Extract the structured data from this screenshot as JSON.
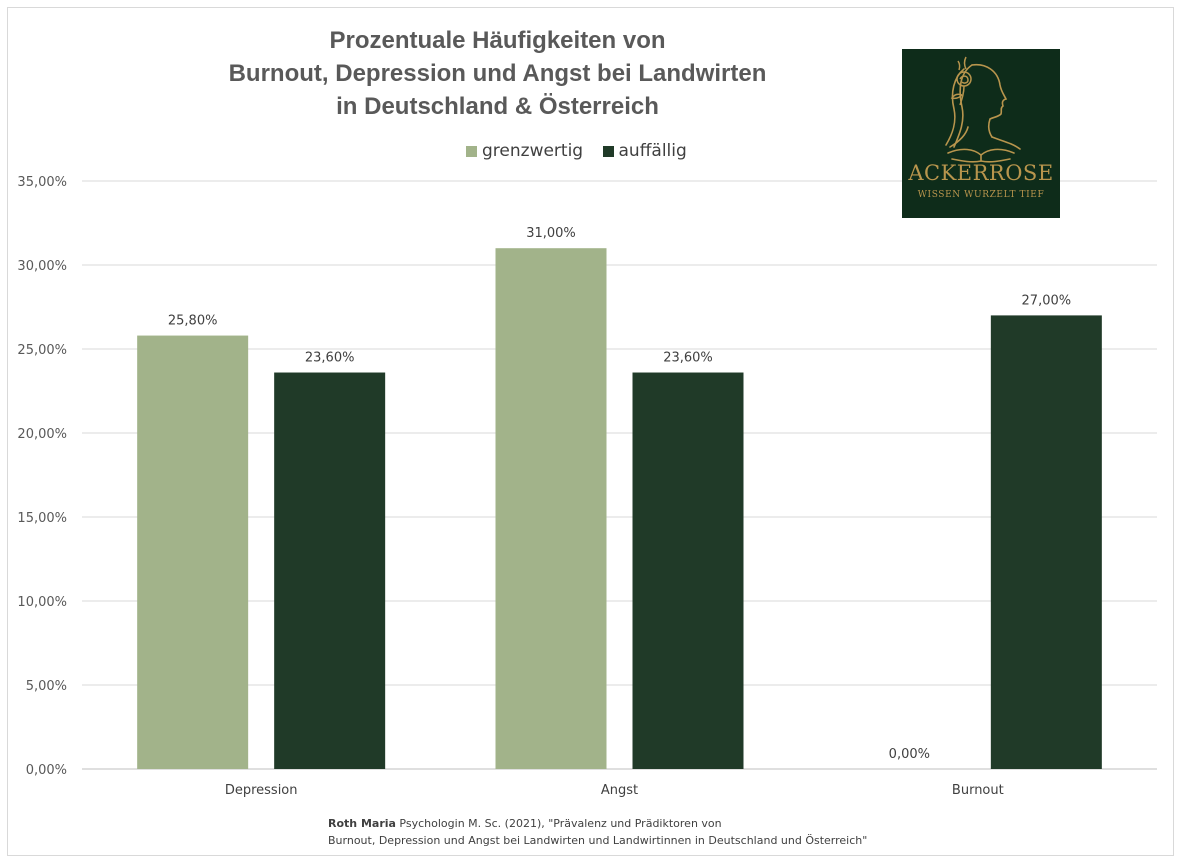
{
  "chart_data": {
    "type": "bar",
    "title_lines": [
      "Prozentuale Häufigkeiten von",
      "Burnout, Depression und Angst bei Landwirten",
      "in Deutschland & Österreich"
    ],
    "categories": [
      "Depression",
      "Angst",
      "Burnout"
    ],
    "series": [
      {
        "name": "grenzwertig",
        "color": "#a2b38a",
        "values": [
          25.8,
          31.0,
          0.0
        ],
        "labels": [
          "25,80%",
          "31,00%",
          "0,00%"
        ]
      },
      {
        "name": "auffällig",
        "color": "#203a28",
        "values": [
          23.6,
          23.6,
          27.0
        ],
        "labels": [
          "23,60%",
          "23,60%",
          "27,00%"
        ]
      }
    ],
    "ylim": [
      0,
      35
    ],
    "yticks": [
      0,
      5,
      10,
      15,
      20,
      25,
      30,
      35
    ],
    "ytick_labels": [
      "0,00%",
      "5,00%",
      "10,00%",
      "15,00%",
      "20,00%",
      "25,00%",
      "30,00%",
      "35,00%"
    ],
    "grid": true,
    "legend_position": "top",
    "xlabel": "",
    "ylabel": ""
  },
  "logo": {
    "name": "ACKERROSE",
    "tagline": "WISSEN WURZELT TIEF",
    "background": "#0e2c1a",
    "accent": "#b8954d"
  },
  "source": {
    "author": "Roth Maria",
    "line1_rest": " Psychologin M. Sc. (2021), \"Prävalenz und Prädiktoren von",
    "line2": "Burnout, Depression und Angst bei Landwirten und Landwirtinnen in Deutschland und Österreich\""
  }
}
